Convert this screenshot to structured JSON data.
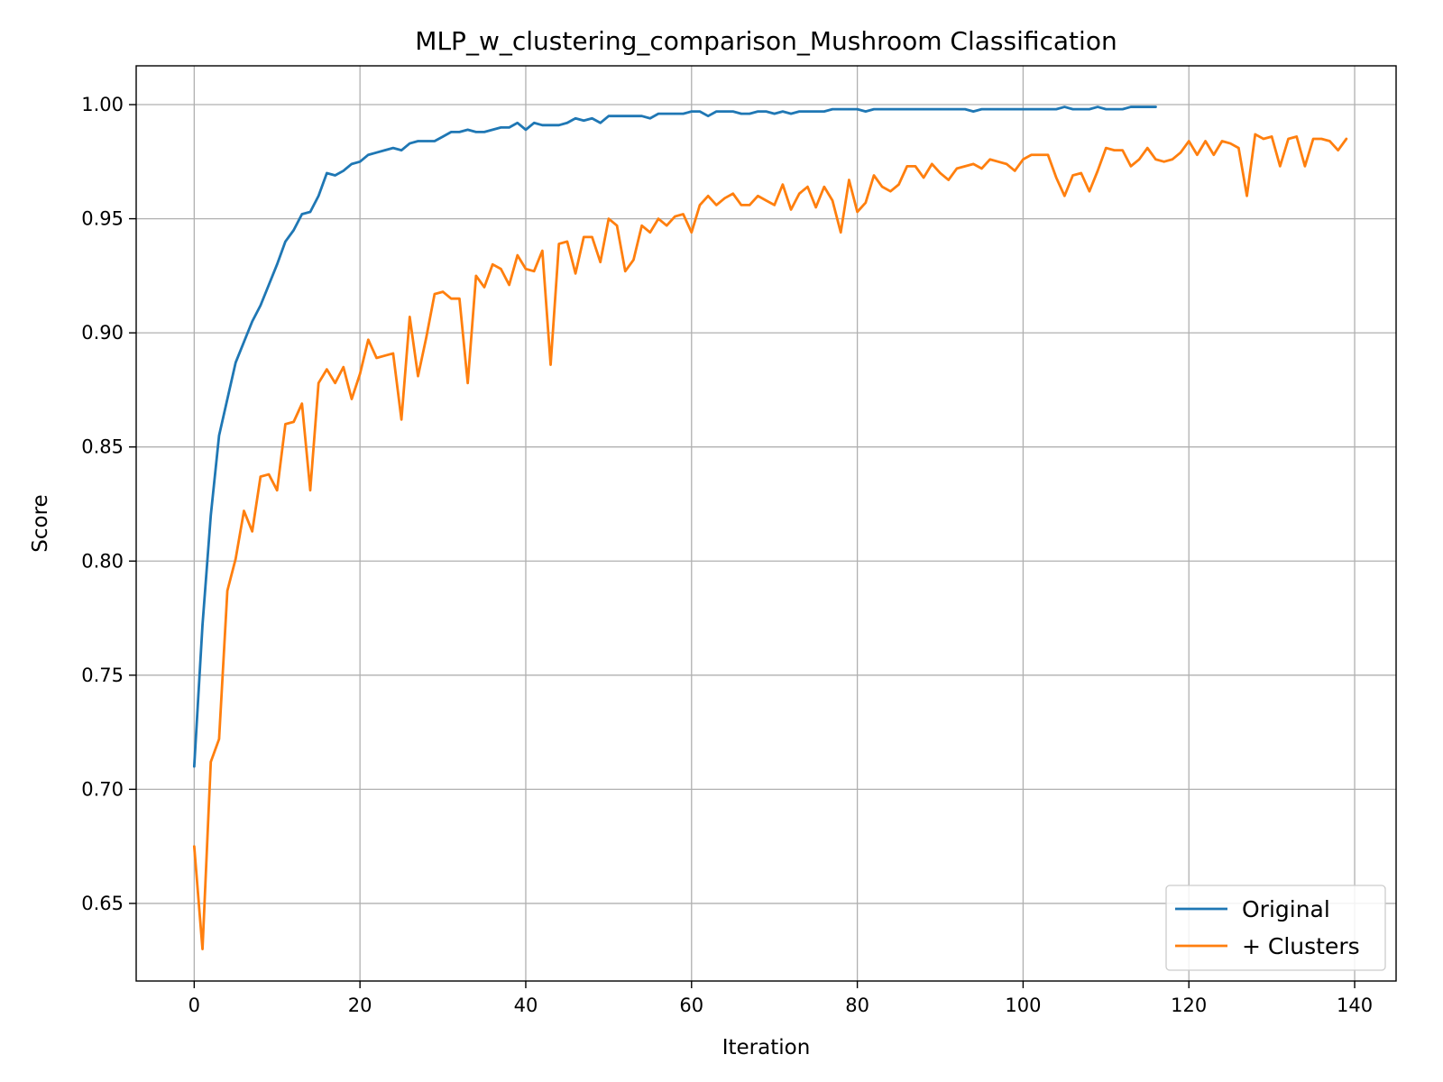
{
  "chart_data": {
    "type": "line",
    "title": "MLP_w_clustering_comparison_Mushroom Classification",
    "xlabel": "Iteration",
    "ylabel": "Score",
    "xlim": [
      -7,
      145
    ],
    "ylim": [
      0.616,
      1.017
    ],
    "grid": true,
    "legend_position": "bottom-right",
    "x_ticks": [
      0,
      20,
      40,
      60,
      80,
      100,
      120,
      140
    ],
    "y_ticks": [
      0.65,
      0.7,
      0.75,
      0.8,
      0.85,
      0.9,
      0.95,
      1.0
    ],
    "x_tick_labels": [
      "0",
      "20",
      "40",
      "60",
      "80",
      "100",
      "120",
      "140"
    ],
    "y_tick_labels": [
      "0.65",
      "0.70",
      "0.75",
      "0.80",
      "0.85",
      "0.90",
      "0.95",
      "1.00"
    ],
    "series": [
      {
        "name": "Original",
        "color": "#1f77b4",
        "values": [
          0.71,
          0.772,
          0.82,
          0.855,
          0.871,
          0.887,
          0.896,
          0.905,
          0.912,
          0.921,
          0.93,
          0.94,
          0.945,
          0.952,
          0.953,
          0.96,
          0.97,
          0.969,
          0.971,
          0.974,
          0.975,
          0.978,
          0.979,
          0.98,
          0.981,
          0.98,
          0.983,
          0.984,
          0.984,
          0.984,
          0.986,
          0.988,
          0.988,
          0.989,
          0.988,
          0.988,
          0.989,
          0.99,
          0.99,
          0.992,
          0.989,
          0.992,
          0.991,
          0.991,
          0.991,
          0.992,
          0.994,
          0.993,
          0.994,
          0.992,
          0.995,
          0.995,
          0.995,
          0.995,
          0.995,
          0.994,
          0.996,
          0.996,
          0.996,
          0.996,
          0.997,
          0.997,
          0.995,
          0.997,
          0.997,
          0.997,
          0.996,
          0.996,
          0.997,
          0.997,
          0.996,
          0.997,
          0.996,
          0.997,
          0.997,
          0.997,
          0.997,
          0.998,
          0.998,
          0.998,
          0.998,
          0.997,
          0.998,
          0.998,
          0.998,
          0.998,
          0.998,
          0.998,
          0.998,
          0.998,
          0.998,
          0.998,
          0.998,
          0.998,
          0.997,
          0.998,
          0.998,
          0.998,
          0.998,
          0.998,
          0.998,
          0.998,
          0.998,
          0.998,
          0.998,
          0.999,
          0.998,
          0.998,
          0.998,
          0.999,
          0.998,
          0.998,
          0.998,
          0.999,
          0.999,
          0.999,
          0.999
        ]
      },
      {
        "name": "+ Clusters",
        "color": "#ff7f0e",
        "values": [
          0.675,
          0.63,
          0.712,
          0.722,
          0.787,
          0.801,
          0.822,
          0.813,
          0.837,
          0.838,
          0.831,
          0.86,
          0.861,
          0.869,
          0.831,
          0.878,
          0.884,
          0.878,
          0.885,
          0.871,
          0.882,
          0.897,
          0.889,
          0.89,
          0.891,
          0.862,
          0.907,
          0.881,
          0.898,
          0.917,
          0.918,
          0.915,
          0.915,
          0.878,
          0.925,
          0.92,
          0.93,
          0.928,
          0.921,
          0.934,
          0.928,
          0.927,
          0.936,
          0.886,
          0.939,
          0.94,
          0.926,
          0.942,
          0.942,
          0.931,
          0.95,
          0.947,
          0.927,
          0.932,
          0.947,
          0.944,
          0.95,
          0.947,
          0.951,
          0.952,
          0.944,
          0.956,
          0.96,
          0.956,
          0.959,
          0.961,
          0.956,
          0.956,
          0.96,
          0.958,
          0.956,
          0.965,
          0.954,
          0.961,
          0.964,
          0.955,
          0.964,
          0.958,
          0.944,
          0.967,
          0.953,
          0.957,
          0.969,
          0.964,
          0.962,
          0.965,
          0.973,
          0.973,
          0.968,
          0.974,
          0.97,
          0.967,
          0.972,
          0.973,
          0.974,
          0.972,
          0.976,
          0.975,
          0.974,
          0.971,
          0.976,
          0.978,
          0.978,
          0.978,
          0.968,
          0.96,
          0.969,
          0.97,
          0.962,
          0.971,
          0.981,
          0.98,
          0.98,
          0.973,
          0.976,
          0.981,
          0.976,
          0.975,
          0.976,
          0.979,
          0.984,
          0.978,
          0.984,
          0.978,
          0.984,
          0.983,
          0.981,
          0.96,
          0.987,
          0.985,
          0.986,
          0.973,
          0.985,
          0.986,
          0.973,
          0.985,
          0.985,
          0.984,
          0.98,
          0.985
        ]
      }
    ]
  }
}
